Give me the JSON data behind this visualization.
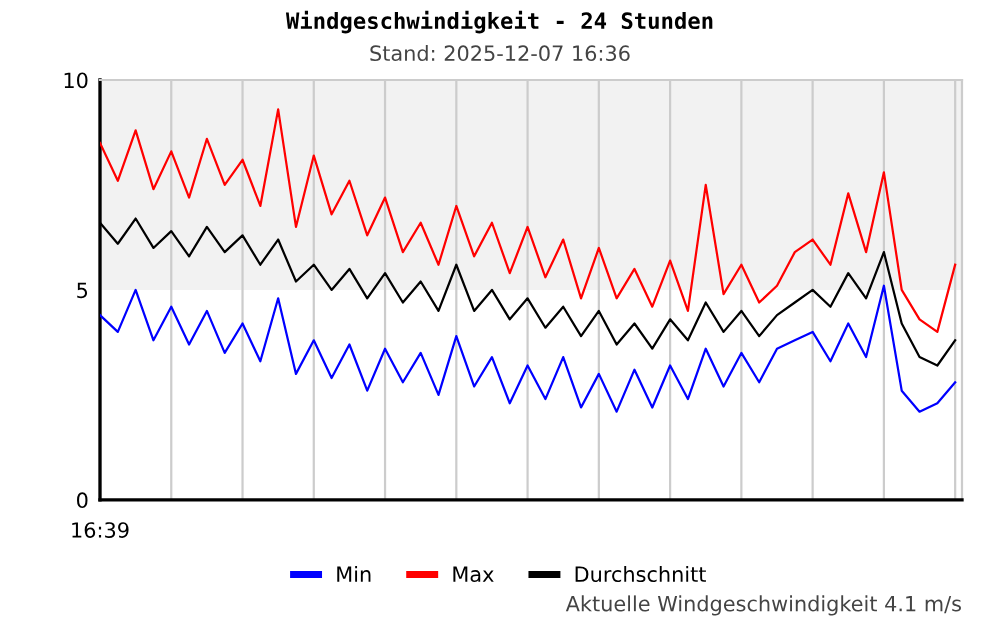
{
  "chart_data": {
    "type": "line",
    "title": "Windgeschwindigkeit - 24 Stunden",
    "subtitle": "Stand: 2025-12-07 16:36",
    "annotations": [
      "16:39",
      "Aktuelle Windgeschwindigkeit 4.1 m/s"
    ],
    "categories": [
      null,
      null,
      null,
      null,
      null,
      null,
      null,
      null,
      null,
      null,
      null,
      null,
      null,
      null,
      null,
      null,
      null,
      null,
      null,
      null,
      null,
      null,
      null,
      null,
      null,
      null,
      null,
      null,
      null,
      null,
      null,
      null,
      null,
      null,
      null,
      null,
      null,
      null,
      null,
      null,
      null,
      null,
      null,
      null,
      null,
      null,
      null,
      null,
      null
    ],
    "series": [
      {
        "name": "Min",
        "color": "#0000ff",
        "values": [
          4.4,
          4.0,
          5.0,
          3.8,
          4.6,
          3.7,
          4.5,
          3.5,
          4.2,
          3.3,
          4.8,
          3.0,
          3.8,
          2.9,
          3.7,
          2.6,
          3.6,
          2.8,
          3.5,
          2.5,
          3.9,
          2.7,
          3.4,
          2.3,
          3.2,
          2.4,
          3.4,
          2.2,
          3.0,
          2.1,
          3.1,
          2.2,
          3.2,
          2.4,
          3.6,
          2.7,
          3.5,
          2.8,
          3.6,
          3.8,
          4.0,
          3.3,
          4.2,
          3.4,
          5.1,
          2.6,
          2.1,
          2.3,
          2.8
        ]
      },
      {
        "name": "Max",
        "color": "#ff0000",
        "values": [
          8.5,
          7.6,
          8.8,
          7.4,
          8.3,
          7.2,
          8.6,
          7.5,
          8.1,
          7.0,
          9.3,
          6.5,
          8.2,
          6.8,
          7.6,
          6.3,
          7.2,
          5.9,
          6.6,
          5.6,
          7.0,
          5.8,
          6.6,
          5.4,
          6.5,
          5.3,
          6.2,
          4.8,
          6.0,
          4.8,
          5.5,
          4.6,
          5.7,
          4.5,
          7.5,
          4.9,
          5.6,
          4.7,
          5.1,
          5.9,
          6.2,
          5.6,
          7.3,
          5.9,
          7.8,
          5.0,
          4.3,
          4.0,
          5.6
        ]
      },
      {
        "name": "Durchschnitt",
        "color": "#000000",
        "values": [
          6.6,
          6.1,
          6.7,
          6.0,
          6.4,
          5.8,
          6.5,
          5.9,
          6.3,
          5.6,
          6.2,
          5.2,
          5.6,
          5.0,
          5.5,
          4.8,
          5.4,
          4.7,
          5.2,
          4.5,
          5.6,
          4.5,
          5.0,
          4.3,
          4.8,
          4.1,
          4.6,
          3.9,
          4.5,
          3.7,
          4.2,
          3.6,
          4.3,
          3.8,
          4.7,
          4.0,
          4.5,
          3.9,
          4.4,
          4.7,
          5.0,
          4.6,
          5.4,
          4.8,
          5.9,
          4.2,
          3.4,
          3.2,
          3.8
        ]
      }
    ],
    "ylim": [
      0,
      10
    ],
    "yticks": [
      0,
      5,
      10
    ],
    "bands": [
      {
        "axis": "y",
        "from": 5,
        "to": 10,
        "color": "#f2f2f2"
      }
    ],
    "grid": "x",
    "legend": "bottom",
    "marker": "none",
    "line_style": "solid"
  }
}
